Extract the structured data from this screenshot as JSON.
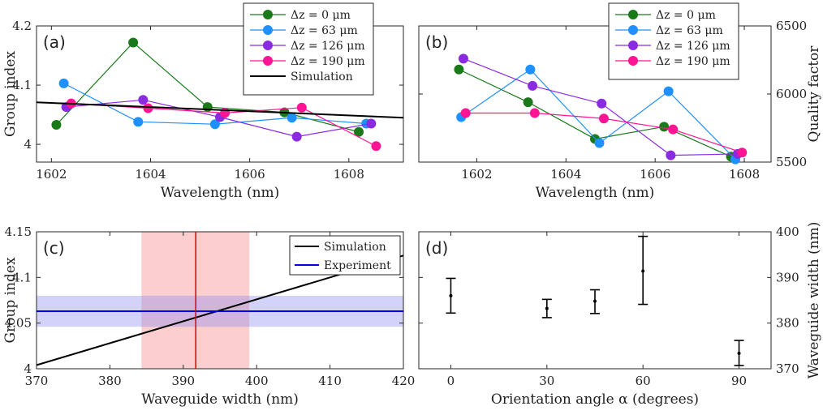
{
  "chart_data": [
    {
      "panel": "(a)",
      "type": "line",
      "xlabel": "Wavelength (nm)",
      "ylabel": "Group index",
      "xlim": [
        1601.7,
        1609.1
      ],
      "ylim": [
        3.97,
        4.2
      ],
      "xticks": [
        "1602",
        "1604",
        "1606",
        "1608"
      ],
      "yticks": [
        "4",
        "4.1",
        "4.2"
      ],
      "legend_position": "top-right",
      "series": [
        {
          "name": "Δz = 0 μm",
          "color": "#1a7a1a",
          "x": [
            1602.1,
            1603.65,
            1605.15,
            1606.7,
            1608.2
          ],
          "y": [
            4.033,
            4.172,
            4.063,
            4.054,
            4.021
          ]
        },
        {
          "name": "Δz = 63 μm",
          "color": "#1e90ff",
          "x": [
            1602.25,
            1603.75,
            1605.3,
            1606.85,
            1608.35
          ],
          "y": [
            4.103,
            4.038,
            4.034,
            4.045,
            4.035
          ]
        },
        {
          "name": "Δz = 126 μm",
          "color": "#8a2be2",
          "x": [
            1602.3,
            1603.85,
            1605.4,
            1606.95,
            1608.45
          ],
          "y": [
            4.063,
            4.075,
            4.046,
            4.013,
            4.035
          ]
        },
        {
          "name": "Δz = 190 μm",
          "color": "#ff1493",
          "x": [
            1602.4,
            1603.95,
            1605.5,
            1607.05,
            1608.55
          ],
          "y": [
            4.069,
            4.061,
            4.053,
            4.062,
            3.997
          ]
        },
        {
          "name": "Simulation",
          "color": "#000000",
          "style": "line",
          "x": [
            1601.7,
            1609.1
          ],
          "y": [
            4.071,
            4.045
          ]
        }
      ]
    },
    {
      "panel": "(b)",
      "type": "line",
      "xlabel": "Wavelength (nm)",
      "ylabel": "Quality factor",
      "xlim": [
        1600.7,
        1608.6
      ],
      "ylim": [
        5500,
        6500
      ],
      "xticks": [
        "1602",
        "1604",
        "1606",
        "1608"
      ],
      "yticks": [
        "5500",
        "6000",
        "6500"
      ],
      "y_axis_side": "right",
      "legend_position": "top-right",
      "series": [
        {
          "name": "Δz = 0 μm",
          "color": "#1a7a1a",
          "x": [
            1601.6,
            1603.15,
            1604.65,
            1606.2,
            1607.7
          ],
          "y": [
            6180,
            5940,
            5670,
            5760,
            5540
          ]
        },
        {
          "name": "Δz = 63 μm",
          "color": "#1e90ff",
          "x": [
            1601.65,
            1603.2,
            1604.75,
            1606.3,
            1607.8
          ],
          "y": [
            5830,
            6180,
            5640,
            6020,
            5520
          ]
        },
        {
          "name": "Δz = 126 μm",
          "color": "#8a2be2",
          "x": [
            1601.7,
            1603.25,
            1604.8,
            1606.35,
            1607.85
          ],
          "y": [
            6260,
            6060,
            5930,
            5550,
            5560
          ]
        },
        {
          "name": "Δz = 190 μm",
          "color": "#ff1493",
          "x": [
            1601.75,
            1603.3,
            1604.85,
            1606.4,
            1607.95
          ],
          "y": [
            5860,
            5860,
            5820,
            5740,
            5570
          ]
        }
      ]
    },
    {
      "panel": "(c)",
      "type": "line",
      "xlabel": "Waveguide width (nm)",
      "ylabel": "Group index",
      "xlim": [
        370,
        420
      ],
      "ylim": [
        4,
        4.15
      ],
      "xticks": [
        "370",
        "380",
        "390",
        "400",
        "410",
        "420"
      ],
      "yticks": [
        "4",
        "4.05",
        "4.1",
        "4.15"
      ],
      "legend_position": "top-right",
      "series": [
        {
          "name": "Simulation",
          "color": "#000000",
          "x": [
            370,
            420
          ],
          "y": [
            4.004,
            4.124
          ]
        },
        {
          "name": "Experiment",
          "color": "#0000e0",
          "x": [
            370,
            420
          ],
          "y": [
            4.063,
            4.063
          ]
        }
      ],
      "experiment_band": {
        "y_low": 4.046,
        "y_high": 4.08
      },
      "width_band": {
        "x_low": 384.3,
        "x_high": 399.0
      },
      "width_marker_x": 391.7
    },
    {
      "panel": "(d)",
      "type": "scatter",
      "xlabel": "Orientation angle α (degrees)",
      "ylabel": "Waveguide width (nm)",
      "xlim": [
        -10,
        100
      ],
      "ylim": [
        370,
        400
      ],
      "xticks": [
        "0",
        "30",
        "60",
        "90"
      ],
      "yticks": [
        "370",
        "380",
        "390",
        "400"
      ],
      "y_axis_side": "right",
      "points": [
        {
          "x": 0,
          "y": 386.0,
          "ylow": 382.2,
          "yhigh": 389.8
        },
        {
          "x": 30,
          "y": 383.2,
          "ylow": 381.2,
          "yhigh": 385.2
        },
        {
          "x": 45,
          "y": 384.8,
          "ylow": 382.1,
          "yhigh": 387.3
        },
        {
          "x": 60,
          "y": 391.4,
          "ylow": 384.1,
          "yhigh": 399.0
        },
        {
          "x": 90,
          "y": 373.4,
          "ylow": 370.7,
          "yhigh": 376.2
        }
      ]
    }
  ]
}
